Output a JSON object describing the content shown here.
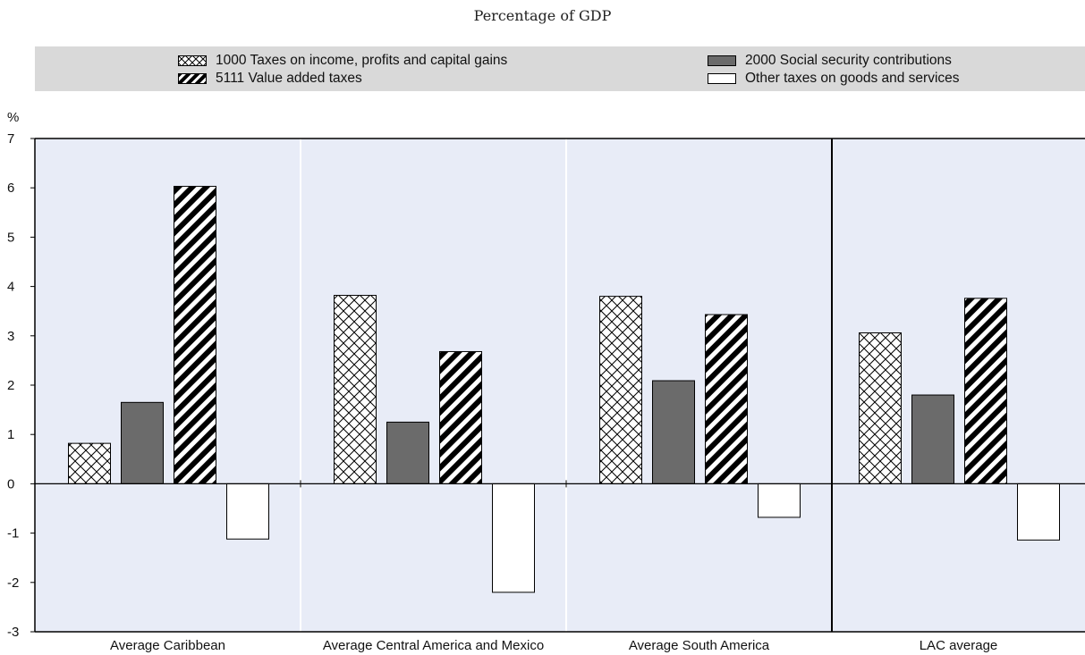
{
  "subtitle": "Percentage of GDP",
  "colors": {
    "panel_bg": "#e8ecf7",
    "legend_bg": "#d9d9d9",
    "ssc_fill": "#6b6b6b",
    "bar_stroke": "#000000"
  },
  "legend": {
    "items": [
      {
        "label": "1000 Taxes on income, profits and capital gains",
        "pattern": "crosshatch"
      },
      {
        "label": "2000 Social security contributions",
        "pattern": "solid-gray"
      },
      {
        "label": "5111 Value added taxes",
        "pattern": "diagonal-stripes"
      },
      {
        "label": "Other taxes on goods and services",
        "pattern": "white"
      }
    ]
  },
  "chart_data": {
    "type": "bar",
    "categories": [
      "Average Caribbean",
      "Average Central America and Mexico",
      "Average South America",
      "LAC average"
    ],
    "series": [
      {
        "name": "1000 Taxes on income, profits and capital gains",
        "values": [
          0.82,
          3.82,
          3.8,
          3.06
        ]
      },
      {
        "name": "2000 Social security contributions",
        "values": [
          1.65,
          1.25,
          2.09,
          1.8
        ]
      },
      {
        "name": "5111 Value added taxes",
        "values": [
          6.03,
          2.68,
          3.43,
          3.76
        ]
      },
      {
        "name": "Other taxes on goods and services",
        "values": [
          -1.12,
          -2.2,
          -0.68,
          -1.14
        ]
      }
    ],
    "ylabel": "%",
    "ylim": [
      -3,
      7
    ],
    "yticks": [
      "-3",
      "-2",
      "-1",
      "0",
      "1",
      "2",
      "3",
      "4",
      "5",
      "6",
      "7"
    ],
    "grid": false,
    "legend_position": "top"
  }
}
